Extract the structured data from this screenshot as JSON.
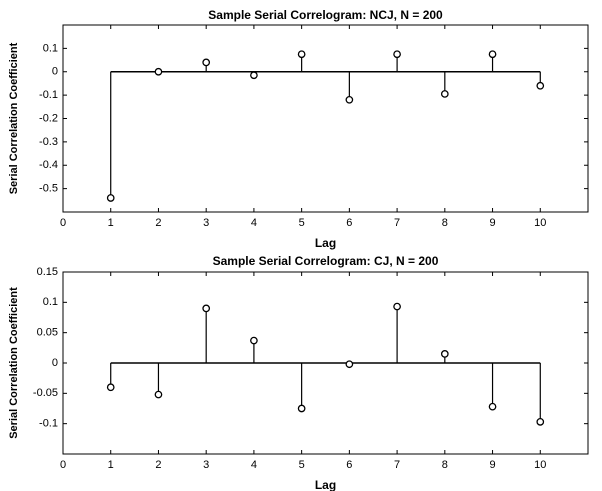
{
  "chart_data": [
    {
      "type": "stem",
      "title": "Sample Serial Correlogram: NCJ, N = 200",
      "xlabel": "Lag",
      "ylabel": "Serial Correlation Coefficient",
      "xlim": [
        0,
        11
      ],
      "ylim": [
        -0.6,
        0.2
      ],
      "xticks": [
        0,
        1,
        2,
        3,
        4,
        5,
        6,
        7,
        8,
        9,
        10
      ],
      "yticks": [
        0.1,
        0,
        -0.1,
        -0.2,
        -0.3,
        -0.4,
        -0.5
      ],
      "ytick_labels": [
        "0.1",
        "0",
        "-0.1",
        "-0.2",
        "-0.3",
        "-0.4",
        "-0.5"
      ],
      "x": [
        1,
        2,
        3,
        4,
        5,
        6,
        7,
        8,
        9,
        10
      ],
      "values": [
        -0.54,
        0.0,
        0.04,
        -0.015,
        0.075,
        -0.12,
        0.075,
        -0.095,
        0.075,
        -0.06
      ],
      "baseline": 0,
      "grid": false
    },
    {
      "type": "stem",
      "title": "Sample Serial Correlogram: CJ, N = 200",
      "xlabel": "Lag",
      "ylabel": "Serial Correlation Coefficient",
      "xlim": [
        0,
        11
      ],
      "ylim": [
        -0.15,
        0.15
      ],
      "xticks": [
        0,
        1,
        2,
        3,
        4,
        5,
        6,
        7,
        8,
        9,
        10
      ],
      "yticks": [
        0.15,
        0.1,
        0.05,
        0,
        -0.05,
        -0.1
      ],
      "ytick_labels": [
        "0.15",
        "0.1",
        "0.05",
        "0",
        "-0.05",
        "-0.1"
      ],
      "x": [
        1,
        2,
        3,
        4,
        5,
        6,
        7,
        8,
        9,
        10
      ],
      "values": [
        -0.04,
        -0.052,
        0.09,
        0.037,
        -0.075,
        -0.002,
        0.093,
        0.015,
        -0.072,
        -0.097
      ],
      "baseline": 0,
      "grid": false
    }
  ]
}
